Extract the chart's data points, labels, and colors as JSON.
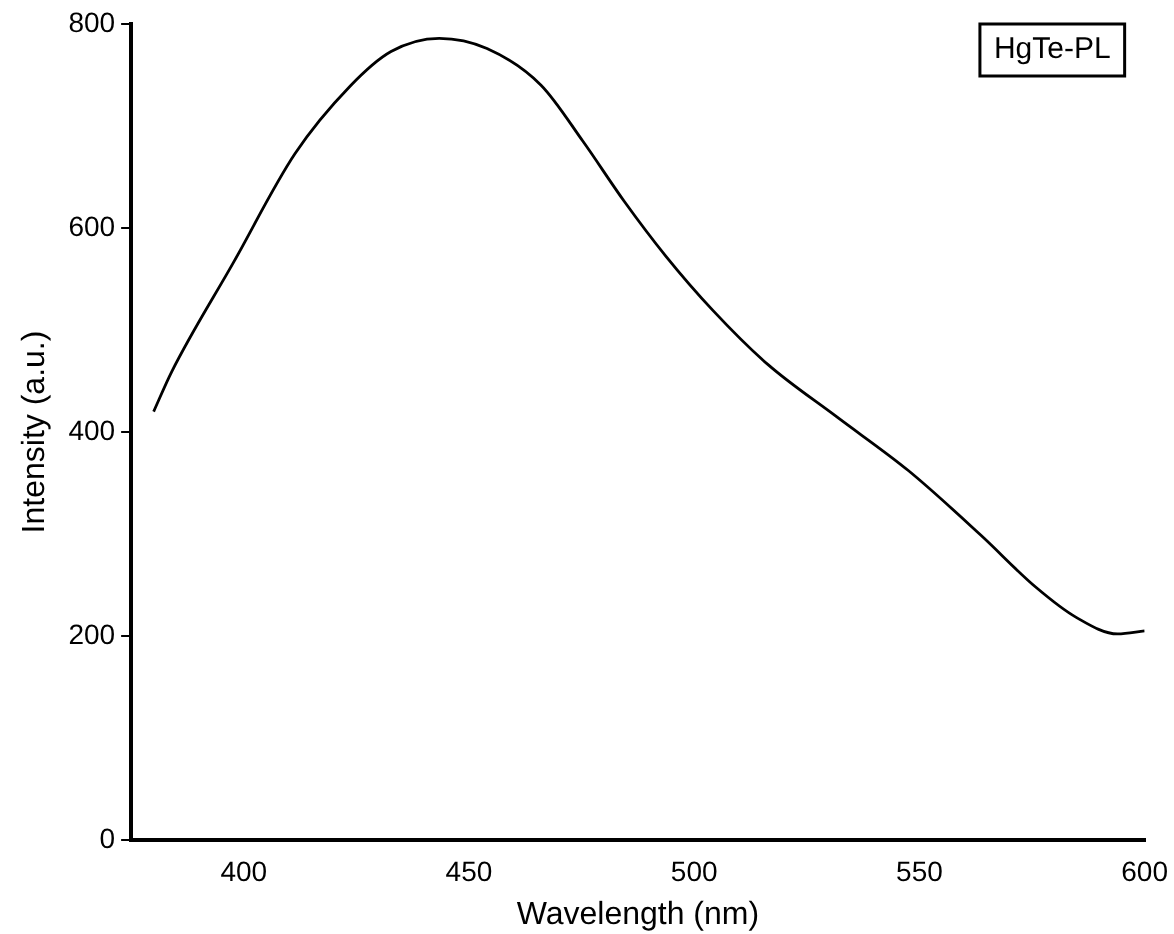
{
  "chart_data": {
    "type": "line",
    "xlabel": "Wavelength (nm)",
    "ylabel": "Intensity (a.u.)",
    "legend": "top right",
    "xlim": [
      375,
      600
    ],
    "xticks": [
      400,
      450,
      500,
      550,
      600
    ],
    "ylim": [
      0,
      800
    ],
    "yticks": [
      0,
      200,
      400,
      600,
      800
    ],
    "grid": false,
    "series": [
      {
        "name": "HgTe-PL",
        "color": "#000000",
        "x": [
          380,
          384,
          397.7,
          411.4,
          423.6,
          432.7,
          443.4,
          454,
          466,
          475.3,
          484.5,
          493.6,
          504.2,
          516.4,
          531.6,
          547.6,
          563.6,
          575.8,
          584.9,
          594,
          600
        ],
        "values": [
          420,
          459,
          566,
          673,
          739,
          773,
          786,
          776,
          740,
          685,
          626,
          573,
          519,
          466,
          415,
          362,
          299,
          248,
          218,
          202,
          205
        ]
      }
    ]
  }
}
